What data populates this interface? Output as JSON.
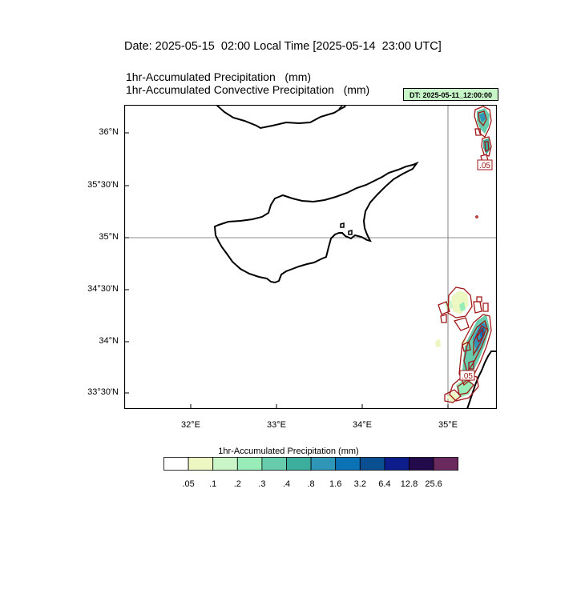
{
  "titles": {
    "date_line": "Date: 2025-05-15  02:00 Local Time [2025-05-14  23:00 UTC]",
    "line1": "1hr-Accumulated Precipitation   (mm)",
    "line2": "1hr-Accumulated Convective Precipitation   (mm)"
  },
  "dt_badge": "DT: 2025-05-11_12:00:00",
  "map": {
    "lon_range": [
      31.25,
      35.55
    ],
    "lat_range": [
      33.3,
      36.22
    ],
    "gridlines": {
      "lon": [
        35.0
      ],
      "lat": [
        35.0
      ]
    },
    "y_ticks": [
      {
        "lat": 36.0,
        "label": "36°N"
      },
      {
        "lat": 35.5,
        "label": "35°30'N"
      },
      {
        "lat": 35.0,
        "label": "35°N"
      },
      {
        "lat": 34.5,
        "label": "34°30'N"
      },
      {
        "lat": 34.0,
        "label": "34°N"
      },
      {
        "lat": 33.5,
        "label": "33°30'N"
      }
    ],
    "x_ticks": [
      {
        "lon": 32.0,
        "label": "32°E"
      },
      {
        "lon": 33.0,
        "label": "33°E"
      },
      {
        "lon": 34.0,
        "label": "34°E"
      },
      {
        "lon": 35.0,
        "label": "35°E"
      }
    ],
    "contour_labels": [
      ".05",
      ".05"
    ],
    "colors": {
      "coast": "#000000",
      "contour": "#a01818",
      "grid": "#555555"
    }
  },
  "colorbar": {
    "title": "1hr-Accumulated Precipitation  (mm)",
    "colors": [
      "#ffffff",
      "#ecf7c2",
      "#c9f5c9",
      "#98ecb8",
      "#66ccac",
      "#3cae9e",
      "#2f96b8",
      "#0b72b6",
      "#0a4f92",
      "#0d1e8c",
      "#230a4a",
      "#6a2a5e"
    ],
    "labels": [
      ".05",
      ".1",
      ".2",
      ".3",
      ".4",
      ".8",
      "1.6",
      "3.2",
      "6.4",
      "12.8",
      "25.6"
    ]
  }
}
